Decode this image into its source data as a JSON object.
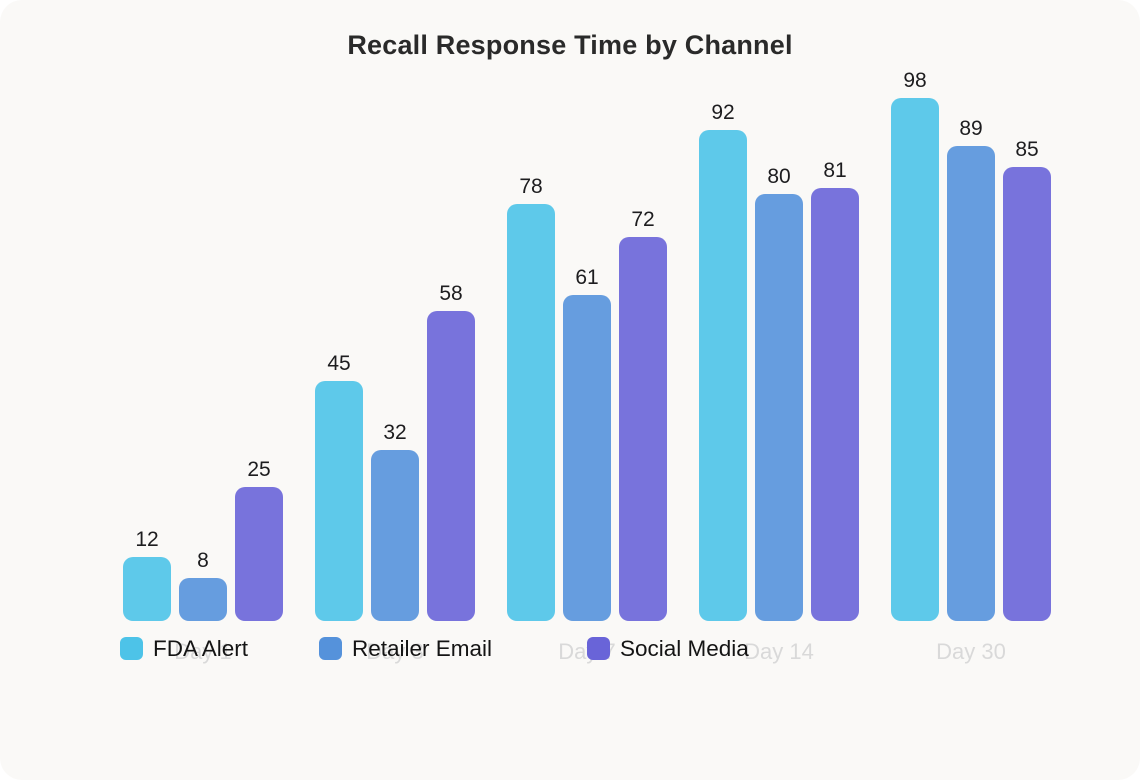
{
  "chart_data": {
    "type": "bar",
    "title": "Recall Response Time by Channel",
    "categories": [
      "Day 1",
      "Day 3",
      "Day 7",
      "Day 14",
      "Day 30"
    ],
    "series": [
      {
        "name": "FDA Alert",
        "color": "#4dc3e8",
        "values": [
          12,
          45,
          78,
          92,
          98
        ]
      },
      {
        "name": "Retailer Email",
        "color": "#5592db",
        "values": [
          8,
          32,
          61,
          80,
          89
        ]
      },
      {
        "name": "Social Media",
        "color": "#6964d8",
        "values": [
          25,
          58,
          72,
          81,
          85
        ]
      }
    ],
    "ylim": [
      0,
      100
    ],
    "grid": false,
    "value_labels": true,
    "legend_position": "bottom-overlapping-x-axis",
    "xlabel": "",
    "ylabel": ""
  },
  "colors": {
    "card_background": "#faf9f7",
    "title_text": "#2a2a2a",
    "value_label_text": "#1d1d1f",
    "x_axis_label_text": "#d9d9d9",
    "legend_text": "#141414"
  }
}
